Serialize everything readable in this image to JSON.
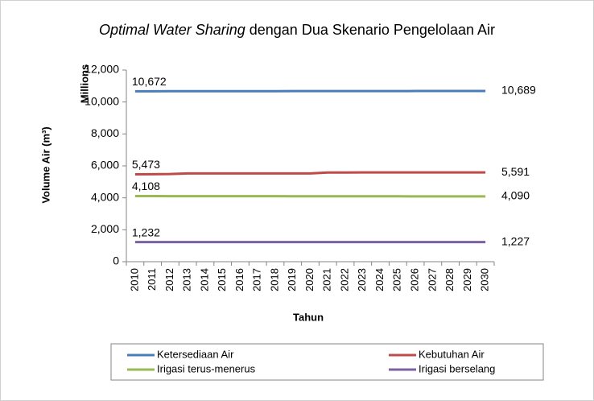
{
  "chart_data": {
    "type": "line",
    "title": {
      "emphasis": "Optimal Water Sharing",
      "rest": "dengan Dua Skenario Pengelolaan Air"
    },
    "y_label": "Volume Air (m³)",
    "y_unit": "Millions",
    "x_label": "Tahun",
    "categories": [
      "2010",
      "2011",
      "2012",
      "2013",
      "2014",
      "2015",
      "2016",
      "2017",
      "2018",
      "2019",
      "2020",
      "2021",
      "2022",
      "2023",
      "2024",
      "2025",
      "2026",
      "2027",
      "2028",
      "2029",
      "2030"
    ],
    "ylim": [
      0,
      12000
    ],
    "yticks": [
      0,
      {
        "value": 2000,
        "label": "2,000"
      },
      {
        "value": 4000,
        "label": "4,000"
      },
      {
        "value": 6000,
        "label": "6,000"
      },
      {
        "value": 8000,
        "label": "8,000"
      },
      {
        "value": 10000,
        "label": "10,000"
      },
      {
        "value": 12000,
        "label": "12,000"
      }
    ],
    "legend": "bottom",
    "series": [
      {
        "name": "Ketersediaan Air",
        "color": "#4a7ebb",
        "values": [
          10672,
          10673,
          10674,
          10675,
          10676,
          10676,
          10677,
          10678,
          10679,
          10680,
          10680,
          10681,
          10682,
          10683,
          10684,
          10685,
          10686,
          10687,
          10687,
          10688,
          10689
        ],
        "value_labels": [
          "10,672",
          null,
          null,
          null,
          null,
          null,
          null,
          null,
          null,
          null,
          null,
          null,
          null,
          null,
          null,
          null,
          null,
          null,
          null,
          null,
          "10,689"
        ]
      },
      {
        "name": "Kebutuhan Air",
        "color": "#be4b48",
        "values": [
          5473,
          5480,
          5490,
          5530,
          5530,
          5530,
          5530,
          5530,
          5530,
          5530,
          5530,
          5585,
          5587,
          5588,
          5589,
          5589,
          5590,
          5590,
          5590,
          5591,
          5591
        ],
        "value_labels": [
          "5,473",
          null,
          null,
          null,
          null,
          null,
          null,
          null,
          null,
          null,
          null,
          null,
          null,
          null,
          null,
          null,
          null,
          null,
          null,
          null,
          "5,591"
        ]
      },
      {
        "name": "Irigasi terus-menerus",
        "color": "#98b954",
        "values": [
          4108,
          4107,
          4106,
          4105,
          4104,
          4103,
          4102,
          4101,
          4100,
          4099,
          4099,
          4098,
          4097,
          4096,
          4095,
          4094,
          4093,
          4092,
          4091,
          4091,
          4090
        ],
        "value_labels": [
          "4,108",
          null,
          null,
          null,
          null,
          null,
          null,
          null,
          null,
          null,
          null,
          null,
          null,
          null,
          null,
          null,
          null,
          null,
          null,
          null,
          "4,090"
        ]
      },
      {
        "name": "Irigasi berselang",
        "color": "#7d60a0",
        "values": [
          1232,
          1232,
          1231,
          1231,
          1231,
          1230,
          1230,
          1230,
          1230,
          1229,
          1229,
          1229,
          1229,
          1229,
          1228,
          1228,
          1228,
          1228,
          1227,
          1227,
          1227
        ],
        "value_labels": [
          "1,232",
          null,
          null,
          null,
          null,
          null,
          null,
          null,
          null,
          null,
          null,
          null,
          null,
          null,
          null,
          null,
          null,
          null,
          null,
          null,
          "1,227"
        ]
      }
    ]
  }
}
